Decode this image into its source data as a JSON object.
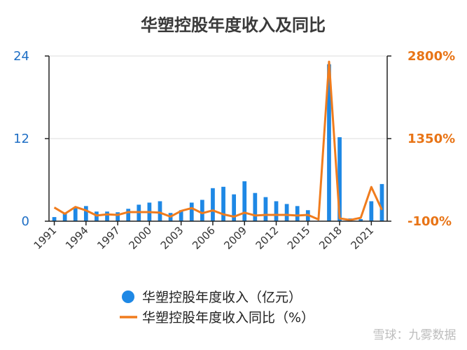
{
  "chart_data": {
    "type": "bar+line",
    "title": "华塑控股年度收入及同比",
    "categories": [
      "1991",
      "1992",
      "1993",
      "1994",
      "1995",
      "1996",
      "1997",
      "1998",
      "1999",
      "2000",
      "2001",
      "2002",
      "2003",
      "2004",
      "2005",
      "2006",
      "2007",
      "2008",
      "2009",
      "2010",
      "2011",
      "2012",
      "2013",
      "2014",
      "2015",
      "2016",
      "2017",
      "2018",
      "2019",
      "2020",
      "2021",
      "2022"
    ],
    "x_tick_labels": [
      "1991",
      "1994",
      "1997",
      "2000",
      "2003",
      "2006",
      "2009",
      "2012",
      "2015",
      "2018",
      "2021"
    ],
    "series": [
      {
        "name": "华塑控股年度收入（亿元）",
        "type": "bar",
        "axis": "left",
        "color": "#1e88e5",
        "values": [
          0.6,
          1.1,
          1.9,
          2.2,
          1.4,
          1.4,
          1.3,
          1.8,
          2.4,
          2.7,
          2.9,
          1.2,
          1.6,
          2.7,
          3.1,
          4.8,
          5.0,
          3.9,
          5.8,
          4.1,
          3.5,
          2.9,
          2.5,
          2.2,
          1.6,
          0.05,
          22.8,
          12.2,
          0.4,
          0.3,
          2.9,
          5.4
        ]
      },
      {
        "name": "华塑控股年度收入同比（%）",
        "type": "line",
        "axis": "right",
        "color": "#f07c1d",
        "values": [
          140,
          30,
          150,
          90,
          0,
          20,
          10,
          60,
          60,
          60,
          50,
          -20,
          80,
          130,
          40,
          90,
          20,
          -20,
          50,
          0,
          10,
          10,
          10,
          0,
          10,
          -70,
          2700,
          -50,
          -80,
          -40,
          500,
          100
        ]
      }
    ],
    "ylim_left": [
      0,
      24
    ],
    "yticks_left": [
      "0",
      "12",
      "24"
    ],
    "ylim_right": [
      -100,
      2800
    ],
    "yticks_right": [
      "-100%",
      "1350%",
      "2800%"
    ],
    "grid": true,
    "legend_position": "bottom-center"
  },
  "watermark": "雪球：九雾数据"
}
